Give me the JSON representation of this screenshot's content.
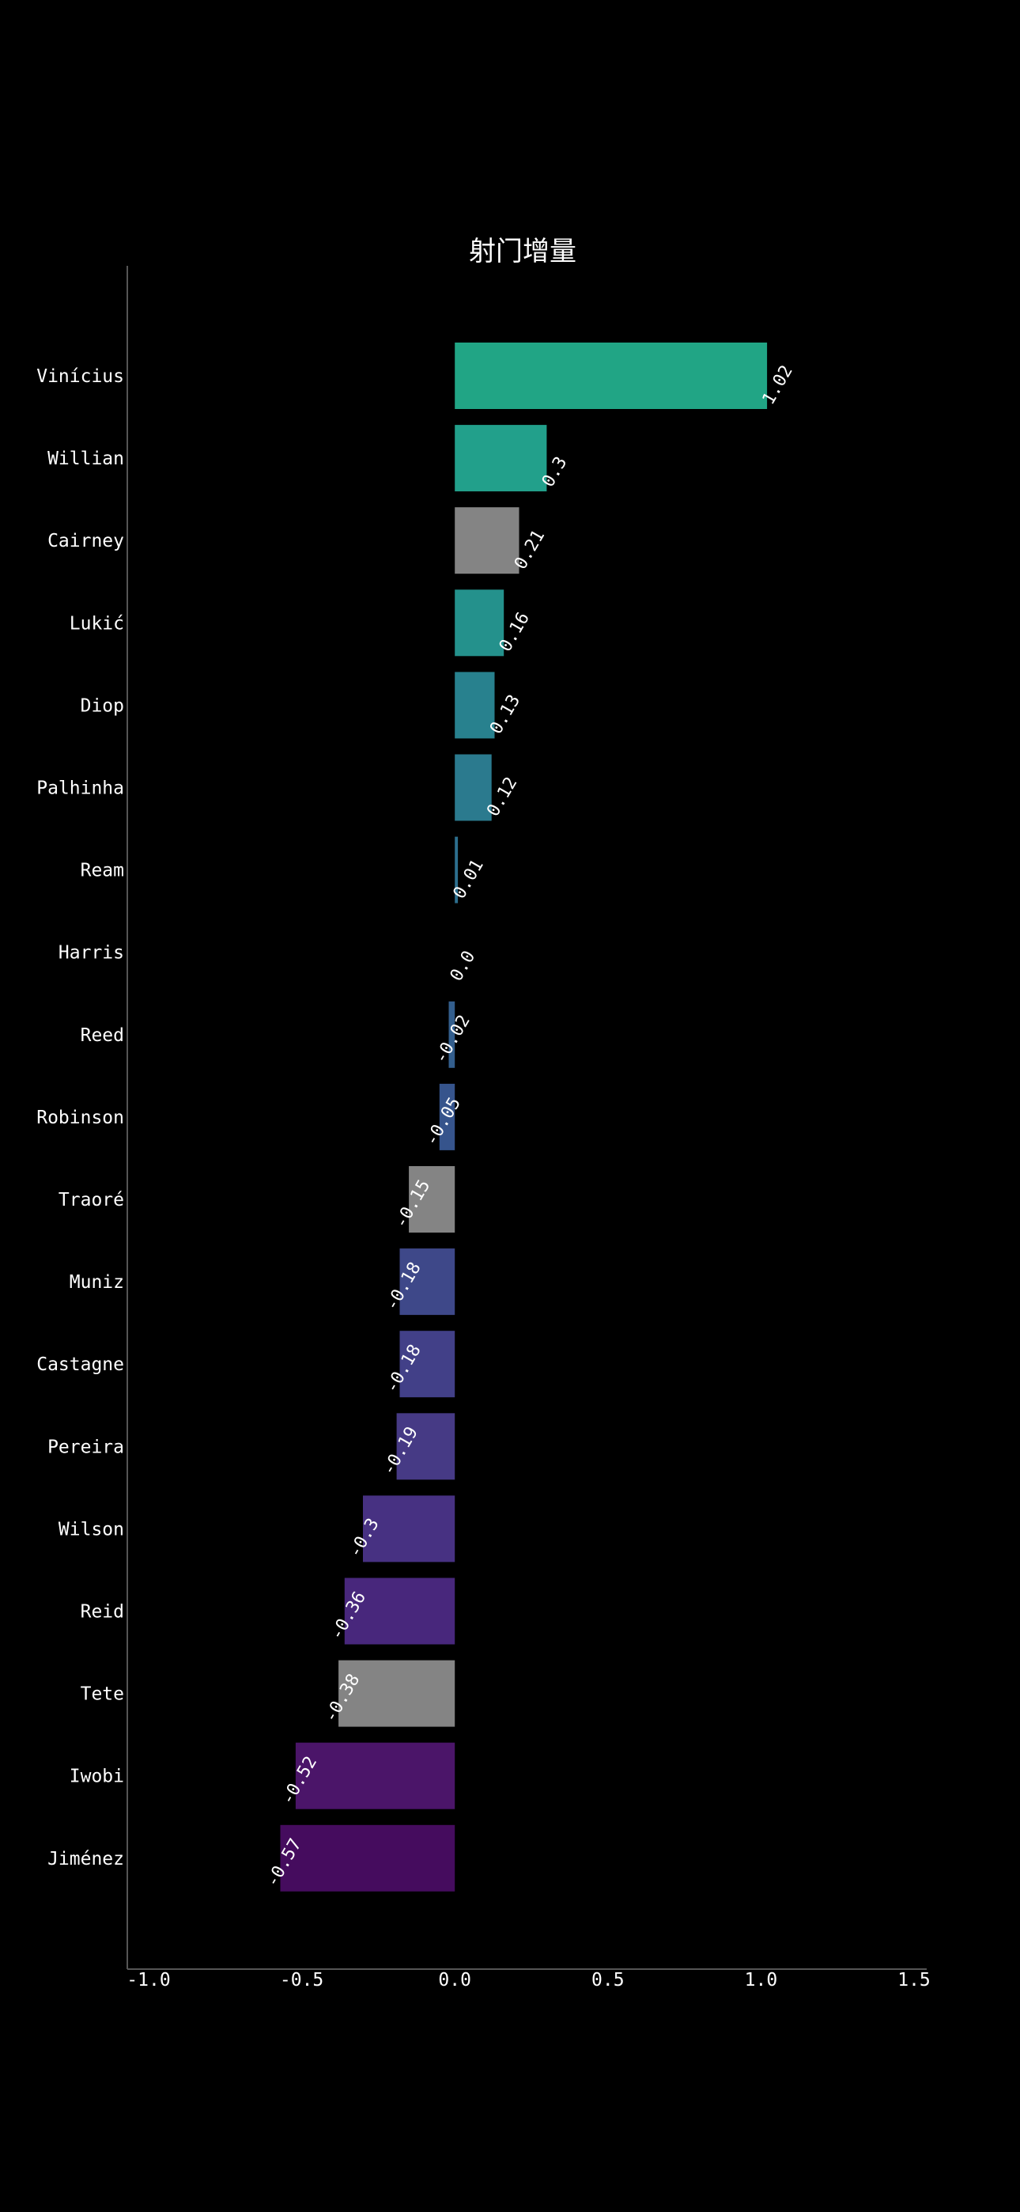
{
  "chart_data": {
    "type": "bar",
    "orientation": "horizontal",
    "title": "射门增量",
    "xlabel": "",
    "ylabel": "",
    "xlim": [
      -1.0,
      1.5
    ],
    "xticks": [
      "-1.0",
      "-0.5",
      "0.0",
      "0.5",
      "1.0",
      "1.5"
    ],
    "xtick_values": [
      -1.0,
      -0.5,
      0.0,
      0.5,
      1.0,
      1.5
    ],
    "grid": false,
    "categories": [
      "Vinícius",
      "Willian",
      "Cairney",
      "Lukić",
      "Diop",
      "Palhinha",
      "Ream",
      "Harris",
      "Reed",
      "Robinson",
      "Traoré",
      "Muniz",
      "Castagne",
      "Pereira",
      "Wilson",
      "Reid",
      "Tete",
      "Iwobi",
      "Jiménez"
    ],
    "values": [
      1.02,
      0.3,
      0.21,
      0.16,
      0.13,
      0.12,
      0.01,
      0.0,
      -0.02,
      -0.05,
      -0.15,
      -0.18,
      -0.18,
      -0.19,
      -0.3,
      -0.36,
      -0.38,
      -0.52,
      -0.57
    ],
    "value_labels": [
      "1.02",
      "0.3",
      "0.21",
      "0.16",
      "0.13",
      "0.12",
      "0.01",
      "0.0",
      "-0.02",
      "-0.05",
      "-0.15",
      "-0.18",
      "-0.18",
      "-0.19",
      "-0.3",
      "-0.36",
      "-0.38",
      "-0.52",
      "-0.57"
    ],
    "colors": [
      "#21a585",
      "#22a08b",
      "#848484",
      "#24918c",
      "#28818e",
      "#2b7a8e",
      "#2d6f8e",
      "#30678d",
      "#335e8d",
      "#36548c",
      "#848484",
      "#3e4889",
      "#424088",
      "#463a85",
      "#473182",
      "#48277c",
      "#848484",
      "#4b1569",
      "#450c5e"
    ]
  }
}
